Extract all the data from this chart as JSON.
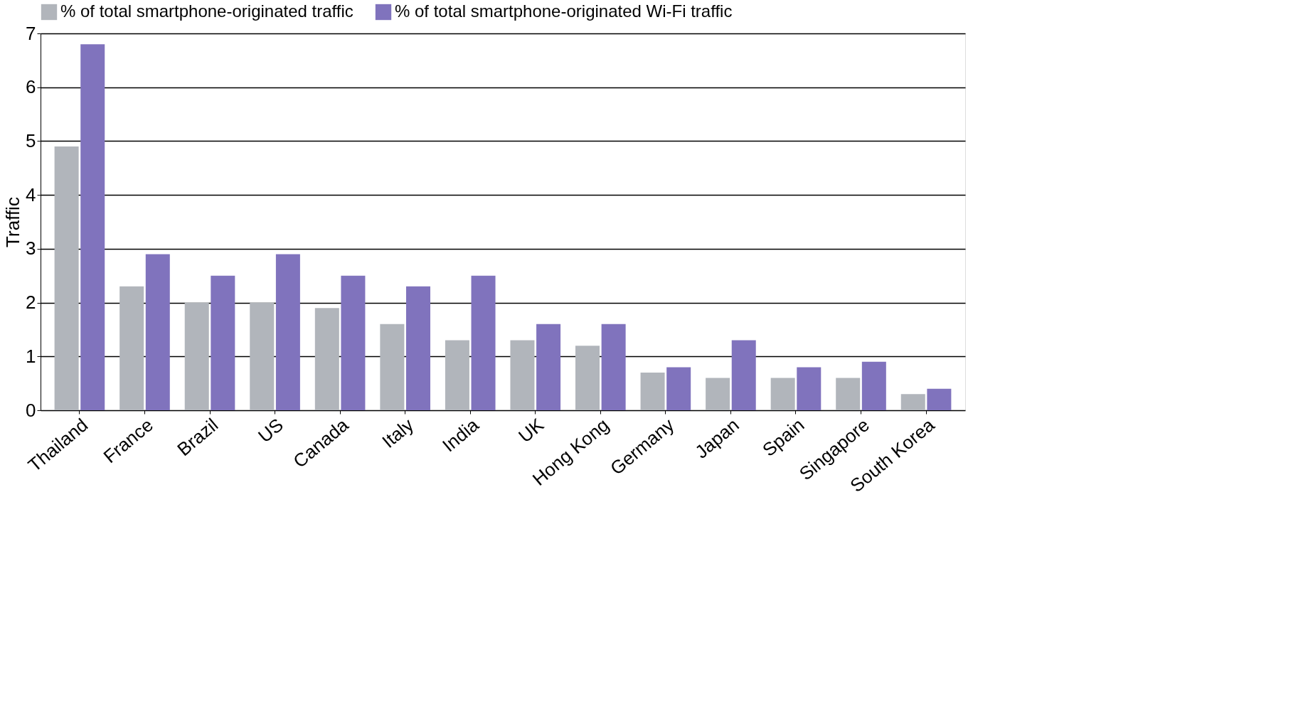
{
  "chart_data": {
    "type": "bar",
    "ylabel": "Traffic",
    "categories": [
      "Thailand",
      "France",
      "Brazil",
      "US",
      "Canada",
      "Italy",
      "India",
      "UK",
      "Hong Kong",
      "Germany",
      "Japan",
      "Spain",
      "Singapore",
      "South Korea"
    ],
    "series": [
      {
        "name": "% of total smartphone-originated traffic",
        "color": "#b1b5bb",
        "values": [
          4.9,
          2.3,
          2.0,
          2.0,
          1.9,
          1.6,
          1.3,
          1.3,
          1.2,
          0.7,
          0.6,
          0.6,
          0.6,
          0.3
        ]
      },
      {
        "name": "% of total smartphone-originated Wi-Fi traffic",
        "color": "#8073bd",
        "values": [
          6.8,
          2.9,
          2.5,
          2.9,
          2.5,
          2.3,
          2.5,
          1.6,
          1.6,
          0.8,
          1.3,
          0.8,
          0.9,
          0.4
        ]
      }
    ],
    "ylim": [
      0,
      7
    ],
    "yticks": [
      0,
      1,
      2,
      3,
      4,
      5,
      6,
      7
    ],
    "grid": "y",
    "legend": "top left"
  }
}
